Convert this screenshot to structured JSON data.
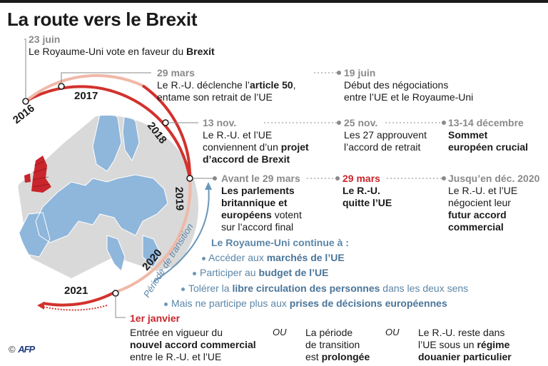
{
  "title": "La route vers le Brexit",
  "years": [
    "2016",
    "2017",
    "2018",
    "2019",
    "2020",
    "2021"
  ],
  "events": {
    "e1": {
      "date": "23 juin",
      "text_pre": "Le Royaume-Uni vote en faveur du ",
      "text_bold": "Brexit"
    },
    "e2": {
      "date": "29 mars",
      "line1_pre": "Le R.-U. déclenche l’",
      "line1_bold": "article 50",
      "line1_post": ",",
      "line2": "entame son retrait de l’UE"
    },
    "e3": {
      "date": "19 juin",
      "line1": "Début des négociations",
      "line2": "entre l’UE et le Royaume-Uni"
    },
    "e4": {
      "date": "13 nov.",
      "line1": "Le R.-U. et l’UE",
      "line2_pre": "conviennent d’un ",
      "line2_bold": "projet",
      "line3": "d’accord de Brexit"
    },
    "e5": {
      "date": "25 nov.",
      "line1": "Les 27 approuvent",
      "line2": "l’accord de retrait"
    },
    "e6": {
      "date": "13-14 décembre",
      "line1": "Sommet",
      "line2": "européen crucial"
    },
    "e7": {
      "date": "Avant le 29 mars",
      "line1": "Les parlements",
      "line2_bold": "britannique et",
      "line3_bold": "européens",
      "line3_post": " votent",
      "line4": "sur l’accord final"
    },
    "e8": {
      "date": "29 mars",
      "line1": "Le R.-U.",
      "line2": "quitte l’UE"
    },
    "e9": {
      "date": "Jusqu’en déc. 2020",
      "line1": "Le R.-U. et l’UE",
      "line2": "négocient leur",
      "line3": "futur accord",
      "line4": "commercial"
    },
    "e10": {
      "date": "1er janvier"
    }
  },
  "transition": {
    "label": "Période de transition",
    "heading": "Le Royaume-Uni continue à :",
    "items": [
      {
        "pre": "Accéder aux ",
        "bold": "marchés de l’UE",
        "post": ""
      },
      {
        "pre": "Participer au ",
        "bold": "budget de l’UE",
        "post": ""
      },
      {
        "pre": "Tolérer la ",
        "bold": "libre circulation des personnes",
        "post": " dans les deux sens"
      },
      {
        "pre": "Mais ne participe plus aux ",
        "bold": "prises de décisions européennes",
        "post": ""
      }
    ]
  },
  "outcomes": {
    "a": {
      "line1": "Entrée en vigueur du",
      "line2_bold": "nouvel accord commercial",
      "line3": "entre le R.-U. et l’UE"
    },
    "b": {
      "line1": "La période",
      "line2": "de transition",
      "line3_pre": "est ",
      "line3_bold": "prolongée"
    },
    "c": {
      "line1": "Le R.-U. reste dans",
      "line2_pre": "l’UE sous un ",
      "line2_bold": "régime",
      "line3_bold": "douanier particulier"
    },
    "or_label": "OU"
  },
  "credit": {
    "copyright": "©",
    "agency": "AFP"
  },
  "colors": {
    "arc_red": "#d2322d",
    "arc_light": "#f0b8a8",
    "map_eu": "#8fb6db",
    "map_uk": "#c8252c",
    "map_other": "#d9d9d9",
    "text_blue": "#5b86a8"
  }
}
